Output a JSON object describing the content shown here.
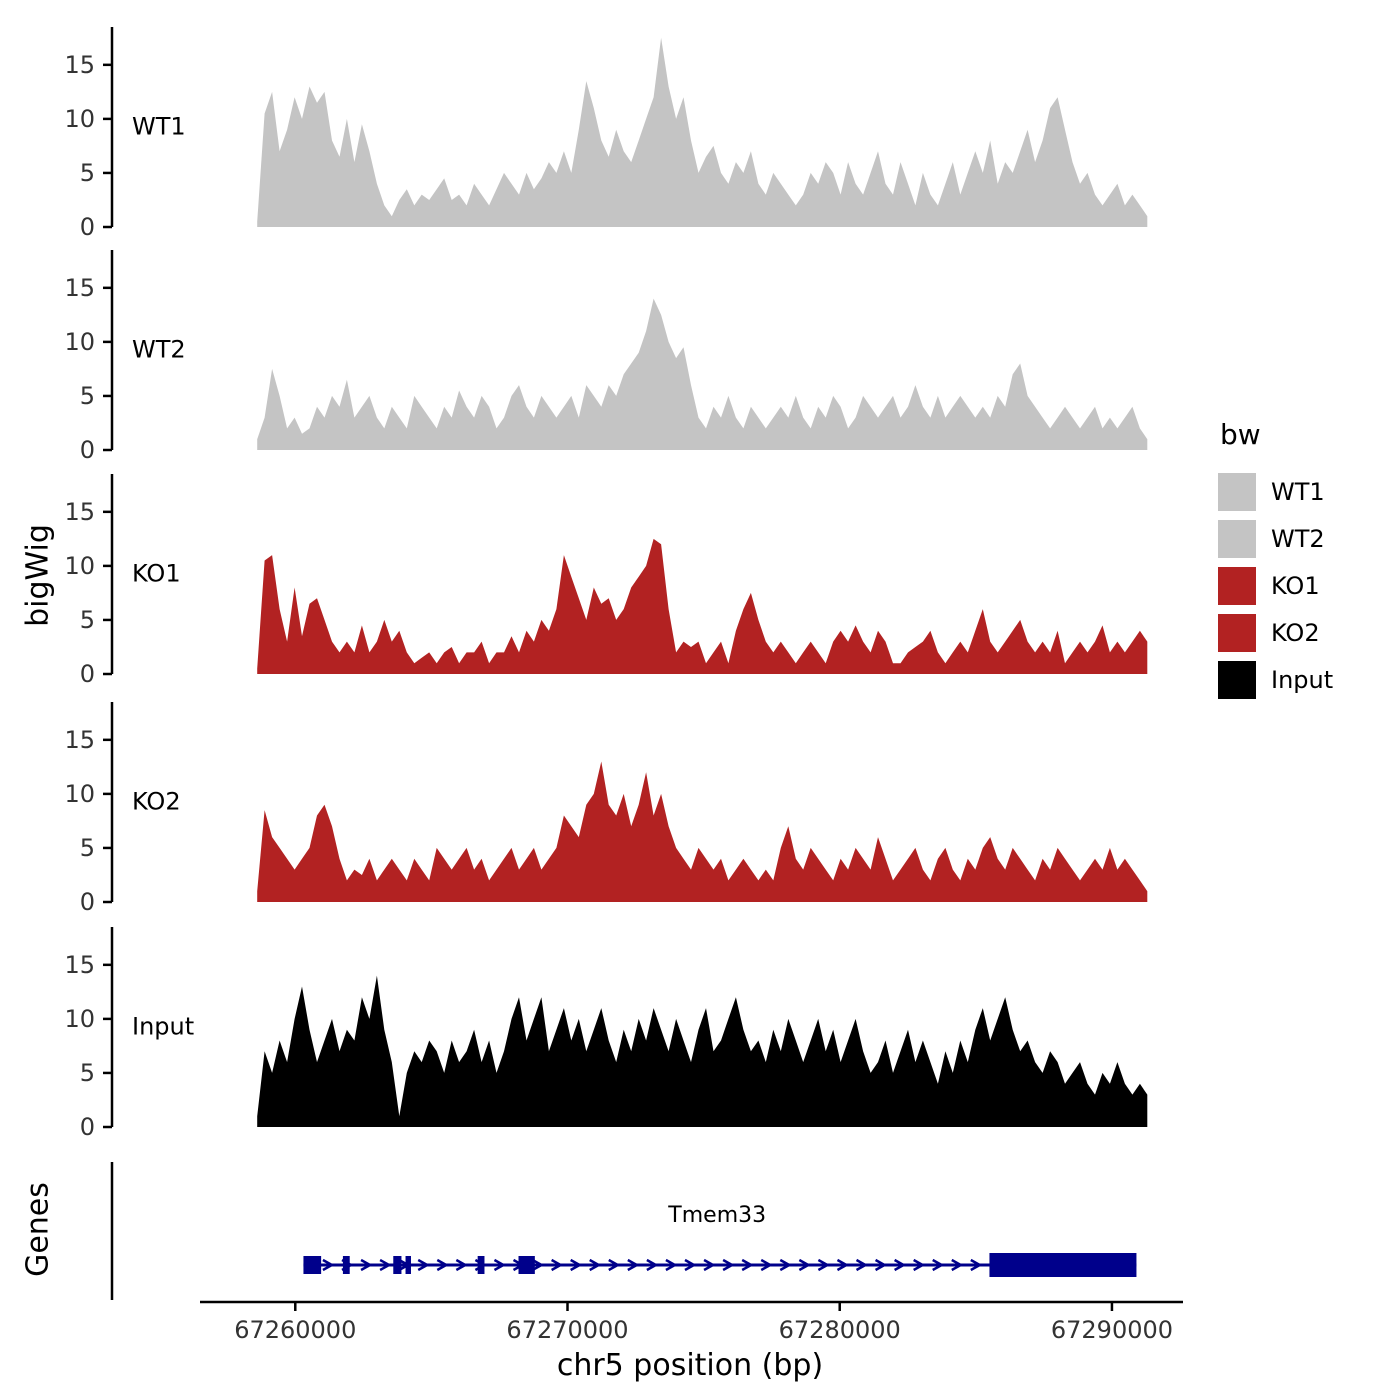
{
  "chart_data": {
    "type": "area",
    "title": "",
    "xlabel": "chr5 position (bp)",
    "ylabel": "bigWig",
    "xlim": [
      67256500,
      67292500
    ],
    "x_ticks": [
      67260000,
      67270000,
      67280000,
      67290000
    ],
    "ylim": [
      0,
      18.5
    ],
    "y_ticks": [
      0,
      5,
      10,
      15
    ],
    "x_range": [
      67258600,
      67291300
    ],
    "grid": false,
    "legend_position": "right",
    "tracks": [
      {
        "name": "WT1",
        "color": "#C4C4C4",
        "values": [
          0.5,
          10.5,
          12.5,
          7,
          9,
          12,
          10,
          13,
          11.5,
          12.5,
          8,
          6.5,
          10,
          6,
          9.5,
          7,
          4,
          2,
          1,
          2.5,
          3.5,
          2,
          3,
          2.5,
          3.5,
          4.5,
          2.5,
          3,
          2,
          4,
          3,
          2,
          3.5,
          5,
          4,
          3,
          5,
          3.5,
          4.5,
          6,
          5,
          7,
          5,
          9,
          13.5,
          11,
          8,
          6.5,
          9,
          7,
          6,
          8,
          10,
          12,
          17.5,
          13,
          10,
          12,
          8,
          5,
          6.5,
          7.5,
          5,
          4,
          6,
          5,
          7,
          4,
          3,
          5,
          4,
          3,
          2,
          3,
          5,
          4,
          6,
          5,
          3,
          6,
          4,
          3,
          5,
          7,
          4,
          3,
          6,
          4,
          2,
          5,
          3,
          2,
          4,
          6,
          3,
          5,
          7,
          5,
          8,
          4,
          6,
          5,
          7,
          9,
          6,
          8,
          11,
          12,
          9,
          6,
          4,
          5,
          3,
          2,
          3,
          4,
          2,
          3,
          2,
          1
        ]
      },
      {
        "name": "WT2",
        "color": "#C4C4C4",
        "values": [
          1,
          3,
          7.5,
          5,
          2,
          3,
          1.5,
          2,
          4,
          3,
          5,
          4,
          6.5,
          3,
          4,
          5,
          3,
          2,
          4,
          3,
          2,
          5,
          4,
          3,
          2,
          4,
          3,
          5.5,
          4,
          3,
          5,
          4,
          2,
          3,
          5,
          6,
          4,
          3,
          5,
          4,
          3,
          4,
          5,
          3,
          6,
          5,
          4,
          6,
          5,
          7,
          8,
          9,
          11,
          14,
          12.5,
          10,
          8.5,
          9.5,
          6,
          3,
          2,
          4,
          3,
          5,
          3,
          2,
          4,
          3,
          2,
          3,
          4,
          3,
          5,
          3,
          2,
          4,
          3,
          5,
          4,
          2,
          3,
          5,
          4,
          3,
          4,
          5,
          3,
          4,
          6,
          4,
          3,
          5,
          3,
          4,
          5,
          4,
          3,
          4,
          3,
          5,
          4,
          7,
          8,
          5,
          4,
          3,
          2,
          3,
          4,
          3,
          2,
          3,
          4,
          2,
          3,
          2,
          3,
          4,
          2,
          1
        ]
      },
      {
        "name": "KO1",
        "color": "#B22222",
        "values": [
          0.5,
          10.5,
          11,
          6,
          3,
          8,
          3.5,
          6.5,
          7,
          5,
          3,
          2,
          3,
          2,
          4.5,
          2,
          3,
          5,
          3,
          4,
          2,
          1,
          1.5,
          2,
          1,
          2,
          2.5,
          1,
          2,
          2,
          3,
          1,
          2,
          2,
          3.5,
          2,
          4,
          3,
          5,
          4,
          6,
          11,
          9,
          7,
          5,
          8,
          6.5,
          7,
          5,
          6,
          8,
          9,
          10,
          12.5,
          12,
          6,
          2,
          3,
          2.5,
          3,
          1,
          2,
          3,
          1,
          4,
          6,
          7.5,
          5,
          3,
          2,
          3,
          2,
          1,
          2,
          3,
          2,
          1,
          3,
          4,
          3,
          4.5,
          3,
          2,
          4,
          3,
          1,
          1,
          2,
          2.5,
          3,
          4,
          2,
          1,
          2,
          3,
          2,
          4,
          6,
          3,
          2,
          3,
          4,
          5,
          3,
          2,
          3,
          2,
          4,
          1,
          2,
          3,
          2,
          3,
          4.5,
          2,
          3,
          2,
          3,
          4,
          3
        ]
      },
      {
        "name": "KO2",
        "color": "#B22222",
        "values": [
          1,
          8.5,
          6,
          5,
          4,
          3,
          4,
          5,
          8,
          9,
          7,
          4,
          2,
          3,
          2.5,
          4,
          2,
          3,
          4,
          3,
          2,
          4,
          3,
          2,
          5,
          4,
          3,
          4,
          5,
          3,
          4,
          2,
          3,
          4,
          5,
          3,
          4,
          5,
          3,
          4,
          5,
          8,
          7,
          6,
          9,
          10,
          13,
          9,
          8,
          10,
          7,
          9,
          12,
          8,
          10,
          7,
          5,
          4,
          3,
          5,
          4,
          3,
          4,
          2,
          3,
          4,
          3,
          2,
          3,
          2,
          5,
          7,
          4,
          3,
          5,
          4,
          3,
          2,
          4,
          3,
          5,
          4,
          3,
          6,
          4,
          2,
          3,
          4,
          5,
          3,
          2,
          4,
          5,
          3,
          2,
          4,
          3,
          5,
          6,
          4,
          3,
          5,
          4,
          3,
          2,
          4,
          3,
          5,
          4,
          3,
          2,
          3,
          4,
          3,
          5,
          3,
          4,
          3,
          2,
          1
        ]
      },
      {
        "name": "Input",
        "color": "#000000",
        "values": [
          1,
          7,
          5,
          8,
          6,
          10,
          13,
          9,
          6,
          8,
          10,
          7,
          9,
          8,
          12,
          10,
          14,
          9,
          6,
          1,
          5,
          7,
          6,
          8,
          7,
          5,
          8,
          6,
          7,
          9,
          6,
          8,
          5,
          7,
          10,
          12,
          8,
          10,
          12,
          7,
          9,
          11,
          8,
          10,
          7,
          9,
          11,
          8,
          6,
          9,
          7,
          10,
          8,
          11,
          9,
          7,
          10,
          8,
          6,
          9,
          11,
          7,
          8,
          10,
          12,
          9,
          7,
          8,
          6,
          9,
          7,
          10,
          8,
          6,
          8,
          10,
          7,
          9,
          6,
          8,
          10,
          7,
          5,
          6,
          8,
          5,
          7,
          9,
          6,
          8,
          6,
          4,
          7,
          5,
          8,
          6,
          9,
          11,
          8,
          10,
          12,
          9,
          7,
          8,
          6,
          5,
          7,
          6,
          4,
          5,
          6,
          4,
          3,
          5,
          4,
          6,
          4,
          3,
          4,
          3
        ]
      }
    ],
    "legend": {
      "title": "bw",
      "entries": [
        {
          "label": "WT1",
          "color": "#C4C4C4"
        },
        {
          "label": "WT2",
          "color": "#C4C4C4"
        },
        {
          "label": "KO1",
          "color": "#B22222"
        },
        {
          "label": "KO2",
          "color": "#B22222"
        },
        {
          "label": "Input",
          "color": "#000000"
        }
      ]
    },
    "genes": {
      "axis_label": "Genes",
      "label": "Tmem33",
      "label_x": 67275500,
      "color": "#00008B",
      "strand": "+",
      "start": 67260300,
      "end": 67290900,
      "exons": [
        [
          67260300,
          67260950
        ],
        [
          67261750,
          67262000
        ],
        [
          67263600,
          67263900
        ],
        [
          67264050,
          67264250
        ],
        [
          67266700,
          67266950
        ],
        [
          67268200,
          67268800
        ]
      ],
      "thick_exon": [
        67285500,
        67290900
      ]
    }
  }
}
